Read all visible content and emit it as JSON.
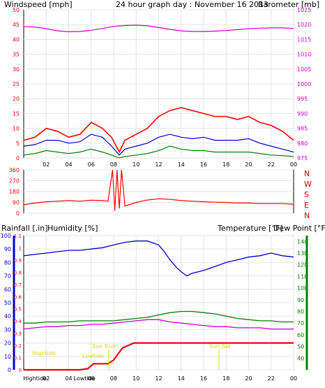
{
  "header": {
    "left_label": "Windspeed [mph]",
    "title": "24 hour graph day : November 16 2013",
    "right_label": "Barometer [mb]"
  },
  "colors": {
    "red": "#ff0000",
    "blue": "#0000cc",
    "green": "#008000",
    "magenta": "#cc00cc",
    "yellow": "#dddd00",
    "dark_red": "#cc0000",
    "axis": "#000000"
  },
  "icons": {
    "sun_rise": "sun-rise-marker-icon",
    "sun_set": "sun-set-marker-icon"
  },
  "chart_data": [
    {
      "type": "line",
      "name": "wind-barometer-panel",
      "x_ticks": [
        "02",
        "04",
        "06",
        "08",
        "10",
        "12",
        "14",
        "16",
        "18",
        "20",
        "22",
        "00"
      ],
      "x_range": [
        0,
        24
      ],
      "left_axis": {
        "label": "Windspeed [mph]",
        "range": [
          0,
          50
        ],
        "ticks": [
          "0",
          "5",
          "10",
          "15",
          "20",
          "25",
          "30",
          "35",
          "40",
          "45",
          "50"
        ]
      },
      "right_axis": {
        "label": "Barometer [mb]",
        "range": [
          975,
          1025
        ],
        "ticks": [
          "975",
          "980",
          "985",
          "990",
          "995",
          "1000",
          "1005",
          "1010",
          "1015",
          "1020",
          "1025"
        ]
      },
      "series": [
        {
          "color": "red",
          "role": "gust",
          "x": [
            0,
            1,
            2,
            3,
            4,
            5,
            6,
            7,
            7.8,
            8.5,
            9,
            10,
            11,
            12,
            13,
            14,
            15,
            16,
            17,
            18,
            19,
            20,
            21,
            22,
            23,
            24
          ],
          "y": [
            6,
            7,
            10,
            9,
            7,
            8,
            12,
            10,
            7,
            2,
            6,
            8,
            10,
            14,
            16,
            17,
            16,
            15,
            14,
            14,
            13,
            14,
            12,
            11,
            9,
            6
          ]
        },
        {
          "color": "blue",
          "role": "average",
          "x": [
            0,
            1,
            2,
            3,
            4,
            5,
            6,
            7,
            7.8,
            8.5,
            9,
            10,
            11,
            12,
            13,
            14,
            15,
            16,
            17,
            18,
            19,
            20,
            21,
            22,
            23,
            24
          ],
          "y": [
            4,
            4.5,
            6,
            6,
            5,
            5.5,
            8,
            7,
            4,
            1,
            3,
            4,
            5,
            7,
            8,
            7,
            6.5,
            7,
            6,
            6,
            6,
            6.5,
            5,
            4,
            3,
            2
          ]
        },
        {
          "color": "green",
          "role": "low",
          "x": [
            0,
            1,
            2,
            3,
            4,
            5,
            6,
            7,
            7.8,
            8.5,
            9,
            10,
            11,
            12,
            13,
            14,
            15,
            16,
            17,
            18,
            19,
            20,
            21,
            22,
            23,
            24
          ],
          "y": [
            1,
            1.5,
            2.5,
            2,
            1.5,
            2,
            3,
            2,
            1,
            0,
            0.5,
            1,
            1.5,
            2.5,
            4,
            3,
            2.5,
            2.5,
            2,
            2,
            2,
            2,
            1.5,
            1,
            0.8,
            0.5
          ]
        },
        {
          "color": "magenta",
          "role": "barometer",
          "axis": "right",
          "x": [
            0,
            1,
            2,
            3,
            4,
            5,
            6,
            7,
            8,
            9,
            10,
            11,
            12,
            13,
            14,
            15,
            16,
            17,
            18,
            19,
            20,
            21,
            22,
            23,
            24
          ],
          "y": [
            1019.3,
            1019.2,
            1018.6,
            1017.9,
            1017.6,
            1017.7,
            1018.1,
            1018.7,
            1019.4,
            1019.7,
            1019.8,
            1019.6,
            1019,
            1018.4,
            1017.9,
            1017.7,
            1017.7,
            1017.8,
            1018,
            1018.3,
            1018.6,
            1018.8,
            1018.9,
            1018.9,
            1018.7
          ]
        }
      ]
    },
    {
      "type": "scatter",
      "name": "wind-direction-panel",
      "x_range": [
        0,
        24
      ],
      "left_axis": {
        "range": [
          0,
          360
        ],
        "ticks": [
          "0",
          "90",
          "180",
          "270",
          "360"
        ]
      },
      "right_labels": [
        "N",
        "W",
        "S",
        "E",
        "N"
      ],
      "series": [
        {
          "color": "red",
          "role": "direction",
          "x": [
            0,
            1,
            2,
            3,
            4,
            5,
            6,
            7,
            7.5,
            7.9,
            8.1,
            8.3,
            8.5,
            8.7,
            9,
            10,
            11,
            12,
            13,
            14,
            15,
            16,
            17,
            18,
            19,
            20,
            21,
            22,
            23,
            24
          ],
          "y": [
            70,
            85,
            95,
            100,
            105,
            100,
            108,
            105,
            100,
            360,
            20,
            360,
            40,
            360,
            60,
            90,
            110,
            120,
            115,
            105,
            100,
            95,
            92,
            90,
            85,
            85,
            80,
            80,
            80,
            75
          ]
        }
      ]
    },
    {
      "type": "line",
      "name": "rain-humidity-temperature-panel",
      "x_ticks": [
        "Hightide",
        "02",
        "04",
        "Lowtide",
        "06",
        "08",
        "10",
        "12",
        "14",
        "16",
        "18",
        "20",
        "22",
        "00"
      ],
      "x_range": [
        0,
        24
      ],
      "labels": {
        "rain": "Rainfall [.in]",
        "humidity": "Humidity [%]",
        "temperature": "Temperature [°F]",
        "dewpoint": "Dew Point [°F]"
      },
      "humidity_axis": {
        "range": [
          0,
          100
        ],
        "ticks": [
          "0",
          "10",
          "20",
          "30",
          "40",
          "50",
          "60",
          "70",
          "80",
          "90",
          "100"
        ]
      },
      "rain_axis": {
        "range": [
          0,
          1.1
        ],
        "ticks": [
          "0",
          "0.1",
          "0.2",
          "0.3",
          "0.4",
          "0.5",
          "0.6",
          "0.7",
          "0.8",
          "0.9",
          "1",
          "1.1"
        ]
      },
      "temp_axis": {
        "range": [
          30,
          145
        ],
        "ticks": [
          "40",
          "50",
          "60",
          "70",
          "80",
          "90",
          "100",
          "110",
          "120",
          "130",
          "140"
        ]
      },
      "annotations": {
        "high_tide": "Hightide",
        "low_tide": "Lowtide",
        "sun_rise": "Sun Rise",
        "sun_set": "Sun Set"
      },
      "series": [
        {
          "color": "blue",
          "role": "humidity",
          "axis": "humidity",
          "x": [
            0,
            1,
            2,
            3,
            4,
            5,
            6,
            7,
            8,
            9,
            10,
            11,
            12,
            12.5,
            13,
            13.5,
            14,
            14.5,
            15,
            16,
            17,
            18,
            19,
            20,
            21,
            22,
            23,
            24
          ],
          "y": [
            85,
            86,
            87,
            88,
            89,
            89,
            90,
            91,
            93,
            95,
            96,
            96,
            93,
            88,
            82,
            77,
            73,
            70,
            72,
            74,
            77,
            80,
            82,
            84,
            85,
            87,
            85,
            84
          ]
        },
        {
          "color": "green",
          "role": "temperature",
          "axis": "temperature",
          "x": [
            0,
            1,
            2,
            3,
            4,
            5,
            6,
            7,
            8,
            9,
            10,
            11,
            12,
            13,
            14,
            15,
            16,
            17,
            18,
            19,
            20,
            21,
            22,
            23,
            24
          ],
          "y": [
            70,
            70,
            71,
            71,
            71,
            72,
            72,
            72,
            72,
            73,
            74,
            75,
            77,
            79,
            80,
            80,
            79,
            78,
            76,
            74,
            73,
            72,
            72,
            71,
            71
          ]
        },
        {
          "color": "magenta",
          "role": "dewpoint",
          "axis": "temperature",
          "x": [
            0,
            1,
            2,
            3,
            4,
            5,
            6,
            7,
            8,
            9,
            10,
            11,
            12,
            13,
            14,
            15,
            16,
            17,
            18,
            19,
            20,
            21,
            22,
            23,
            24
          ],
          "y": [
            65,
            66,
            67,
            67,
            68,
            68,
            69,
            69,
            70,
            71,
            72,
            73,
            73,
            71,
            70,
            69,
            68,
            67,
            67,
            66,
            66,
            66,
            65,
            65,
            65
          ]
        },
        {
          "color": "red",
          "role": "rainfall",
          "axis": "rain",
          "x": [
            0,
            1,
            2,
            3,
            4,
            5,
            5.7,
            6.2,
            7.5,
            8,
            8.3,
            8.8,
            9.3,
            9.8,
            10.5,
            24
          ],
          "y": [
            0,
            0,
            0,
            0,
            0,
            0,
            0.01,
            0.05,
            0.05,
            0.08,
            0.12,
            0.18,
            0.2,
            0.22,
            0.22,
            0.22
          ]
        }
      ]
    }
  ]
}
